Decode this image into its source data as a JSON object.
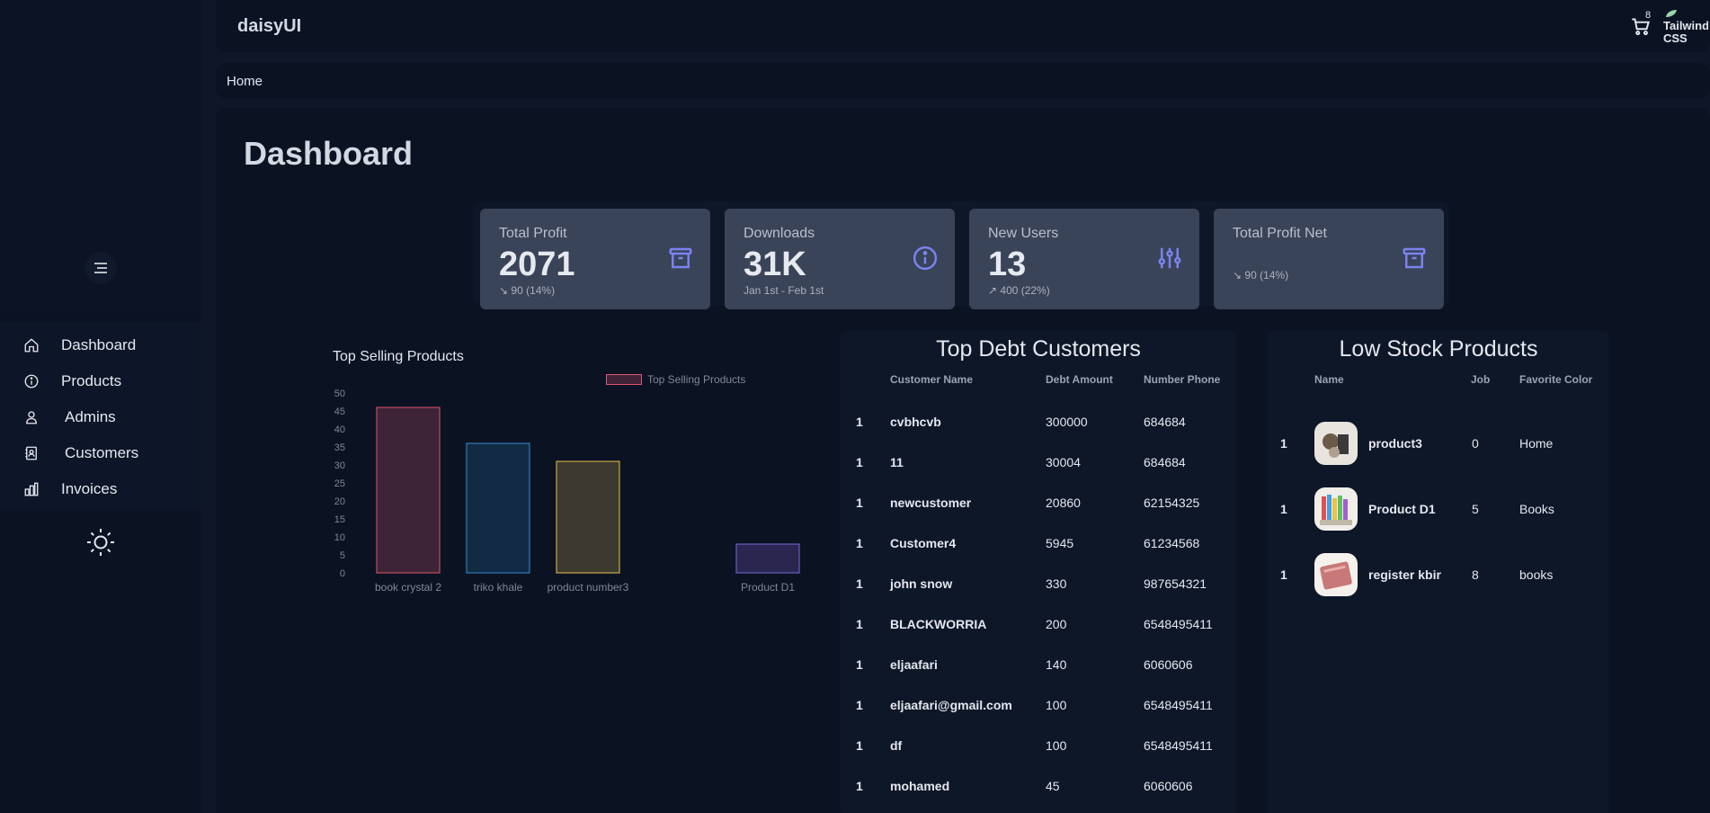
{
  "brand": "daisyUI",
  "cart_count": "8",
  "tailwind_logo_text": "Tailwind CSS",
  "breadcrumb": "Home",
  "page_title": "Dashboard",
  "sidebar": {
    "items": [
      {
        "label": "Dashboard",
        "icon": "home-icon"
      },
      {
        "label": "Products",
        "icon": "info-icon"
      },
      {
        "label": "Admins",
        "icon": "user-icon"
      },
      {
        "label": "Customers",
        "icon": "contact-card-icon"
      },
      {
        "label": "Invoices",
        "icon": "bar-chart-icon"
      }
    ]
  },
  "stats": [
    {
      "title": "Total Profit",
      "value": "2071",
      "desc": "↘︎ 90 (14%)",
      "icon": "archive-icon"
    },
    {
      "title": "Downloads",
      "value": "31K",
      "desc": "Jan 1st - Feb 1st",
      "icon": "info-icon"
    },
    {
      "title": "New Users",
      "value": "13",
      "desc": "↗︎ 400 (22%)",
      "icon": "sliders-icon"
    },
    {
      "title": "Total Profit Net",
      "value": "",
      "desc": "↘︎ 90 (14%)",
      "icon": "archive-icon"
    }
  ],
  "chart_data": {
    "type": "bar",
    "title": "Top Selling Products",
    "legend": "Top Selling Products",
    "categories": [
      "book crystal 2",
      "triko khale",
      "product number3",
      "",
      "Product D1"
    ],
    "values": [
      46,
      36,
      31,
      0,
      8
    ],
    "ylim": [
      0,
      50
    ],
    "yticks": [
      0,
      5,
      10,
      15,
      20,
      25,
      30,
      35,
      40,
      45,
      50
    ],
    "colors": [
      {
        "fill": "#3d2436",
        "stroke": "#e0556e"
      },
      {
        "fill": "#122a44",
        "stroke": "#3a8bd6"
      },
      {
        "fill": "#3c3a30",
        "stroke": "#e8c04e"
      },
      {
        "fill": "#1e2a3a",
        "stroke": "#3aa0a0"
      },
      {
        "fill": "#2a2650",
        "stroke": "#7a68d6"
      }
    ]
  },
  "debt": {
    "title": "Top Debt Customers",
    "headers": [
      "",
      "Customer Name",
      "Debt Amount",
      "Number Phone"
    ],
    "rows": [
      [
        "1",
        "cvbhcvb",
        "300000",
        "684684"
      ],
      [
        "1",
        "11",
        "30004",
        "684684"
      ],
      [
        "1",
        "newcustomer",
        "20860",
        "62154325"
      ],
      [
        "1",
        "Customer4",
        "5945",
        "61234568"
      ],
      [
        "1",
        "john snow",
        "330",
        "987654321"
      ],
      [
        "1",
        "BLACKWORRIA",
        "200",
        "6548495411"
      ],
      [
        "1",
        "eljaafari",
        "140",
        "6060606"
      ],
      [
        "1",
        "eljaafari@gmail.com",
        "100",
        "6548495411"
      ],
      [
        "1",
        "df",
        "100",
        "6548495411"
      ],
      [
        "1",
        "mohamed",
        "45",
        "6060606"
      ]
    ]
  },
  "stock": {
    "title": "Low Stock Products",
    "headers": [
      "",
      "Name",
      "Job",
      "Favorite Color"
    ],
    "rows": [
      [
        "1",
        "product3",
        "0",
        "Home"
      ],
      [
        "1",
        "Product D1",
        "5",
        "Books"
      ],
      [
        "1",
        "register kbir",
        "8",
        "books"
      ]
    ]
  }
}
